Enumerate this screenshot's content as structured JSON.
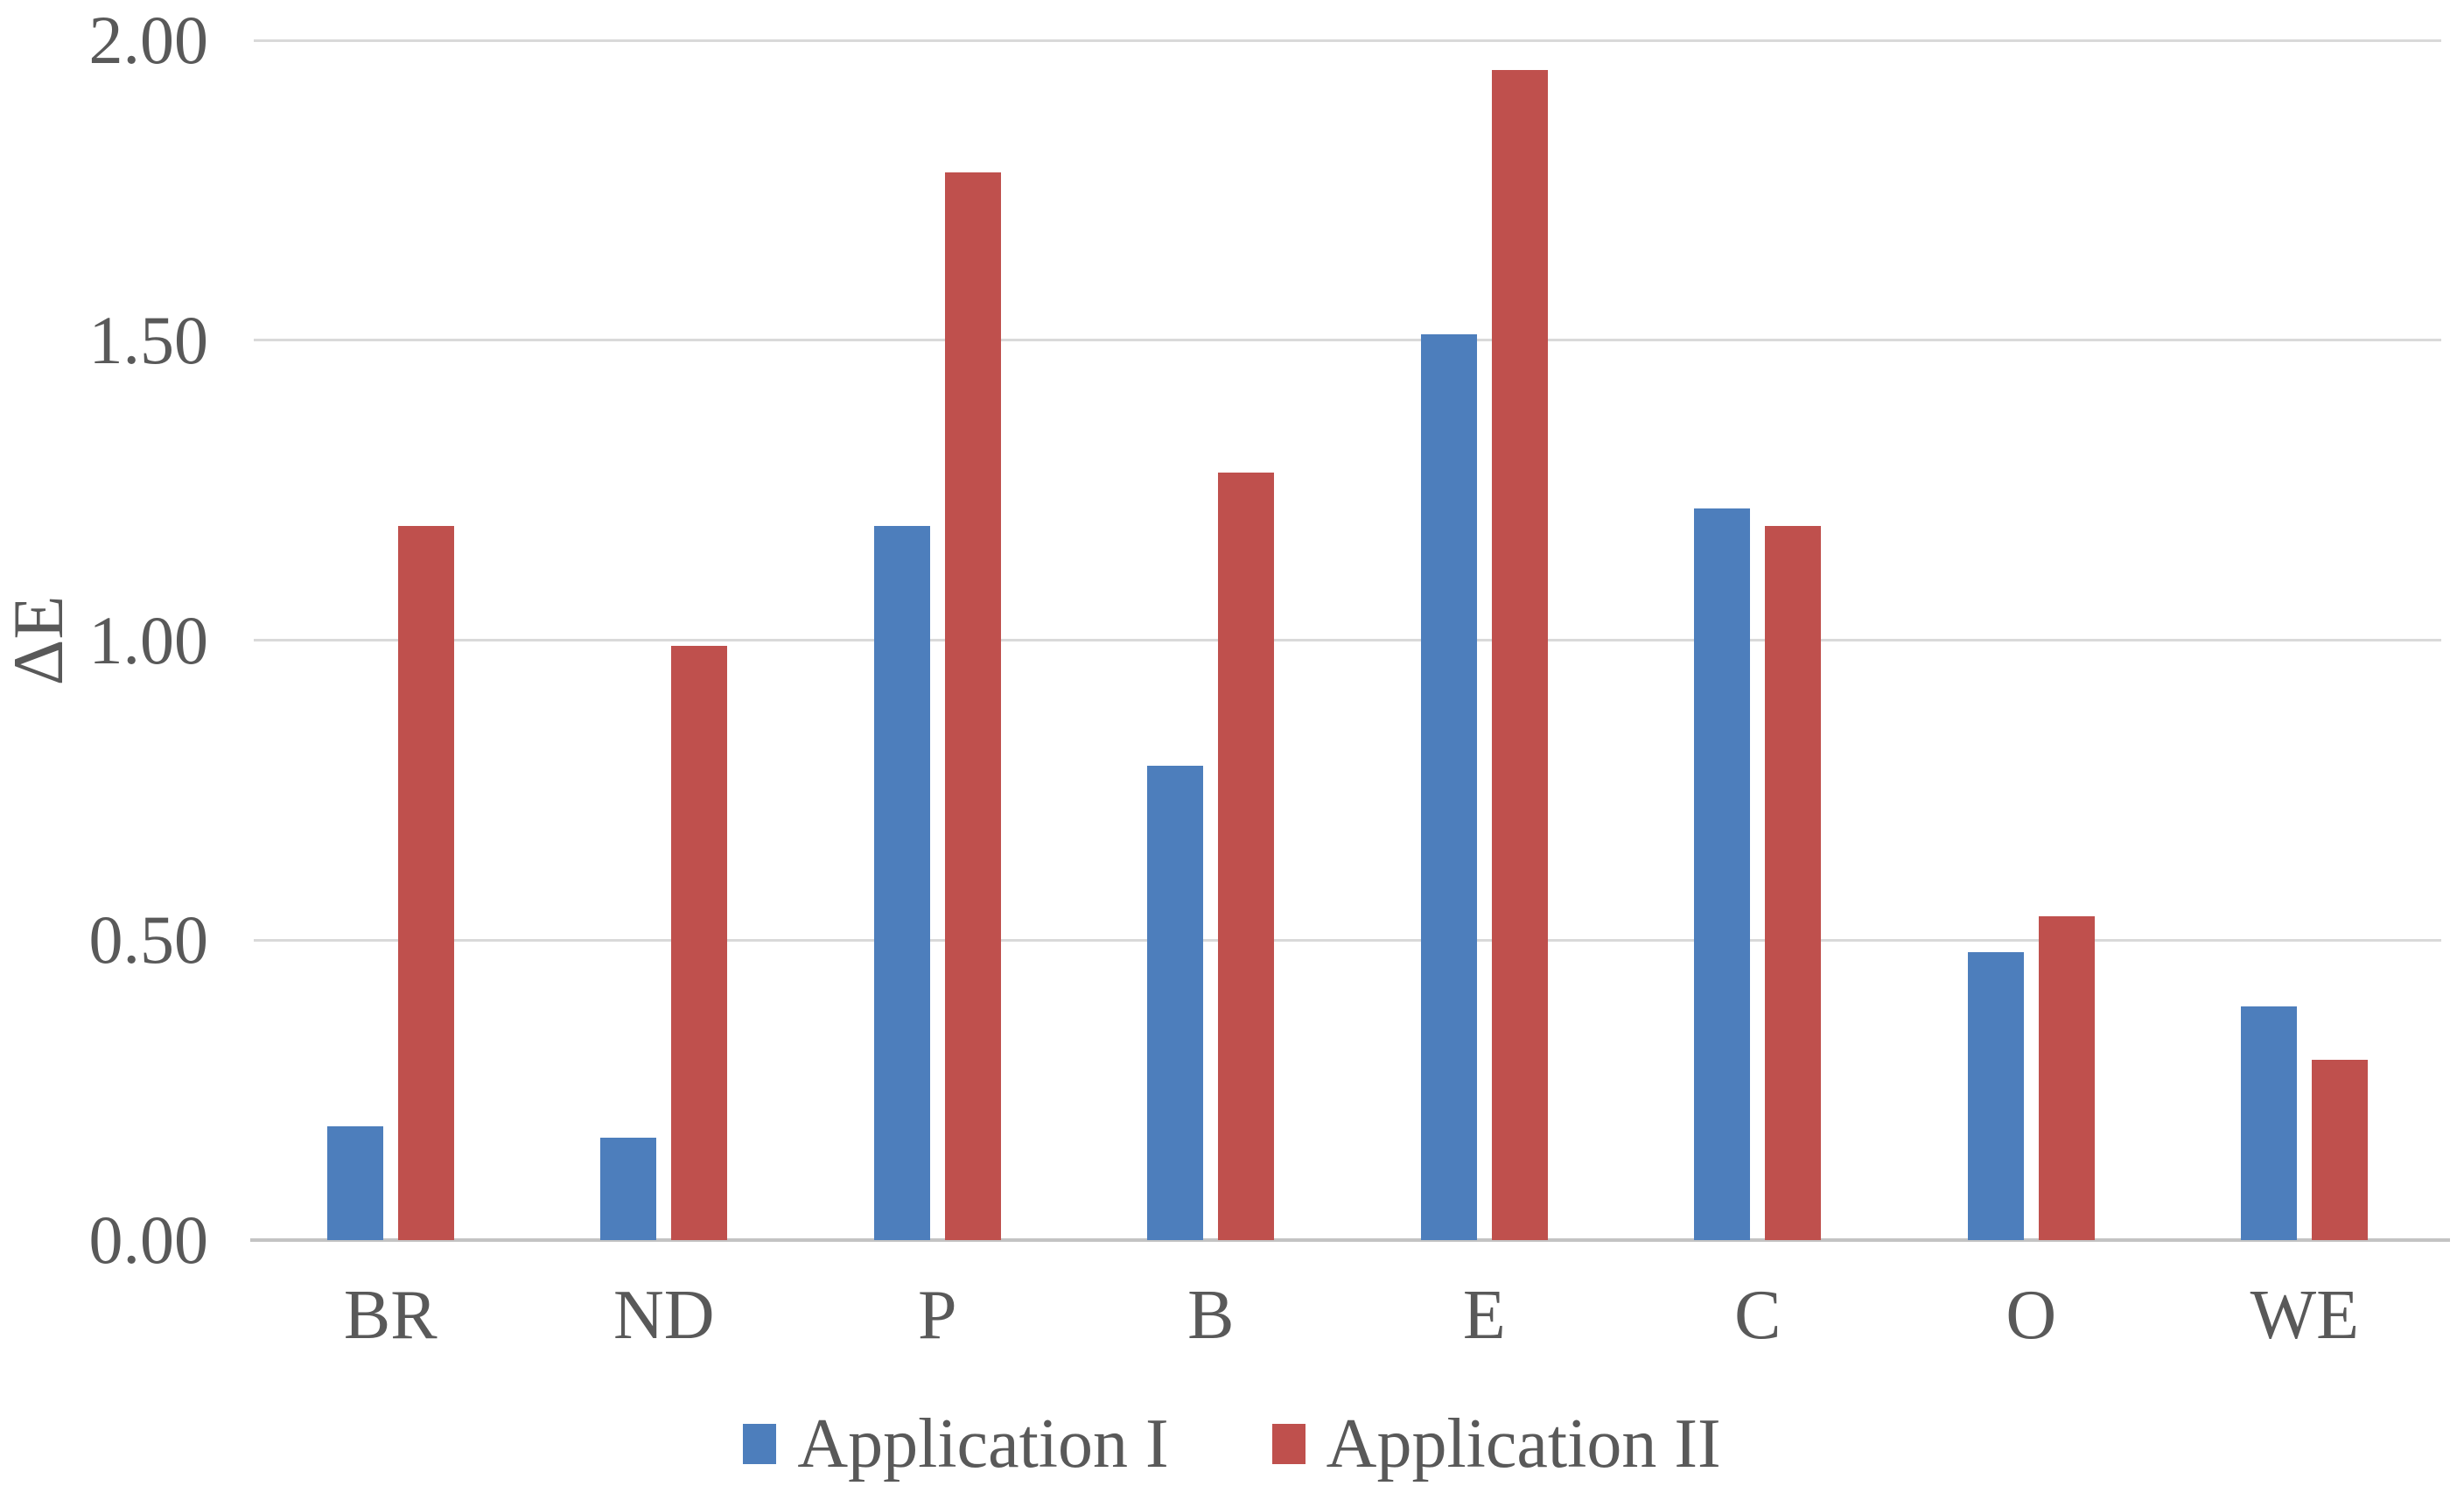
{
  "chart_data": {
    "type": "bar",
    "title": "",
    "ylabel": "ΔE",
    "xlabel": "",
    "categories": [
      "BR",
      "ND",
      "P",
      "B",
      "E",
      "C",
      "O",
      "WE"
    ],
    "series": [
      {
        "name": "Application I",
        "color": "#4d7ebc",
        "values": [
          0.19,
          0.17,
          1.19,
          0.79,
          1.51,
          1.22,
          0.48,
          0.39
        ]
      },
      {
        "name": "Application II",
        "color": "#bf504d",
        "values": [
          1.19,
          0.99,
          1.78,
          1.28,
          1.95,
          1.19,
          0.54,
          0.3
        ]
      }
    ],
    "ylim": [
      0,
      2.0
    ],
    "ytick_step": 0.5,
    "ytick_labels": [
      "0.00",
      "0.50",
      "1.00",
      "1.50",
      "2.00"
    ],
    "grid": "horizontal",
    "legend_position": "bottom",
    "gridline_color": "#d9d9d9",
    "axis_line_color": "#c3c3c3",
    "text_color": "#595959"
  }
}
